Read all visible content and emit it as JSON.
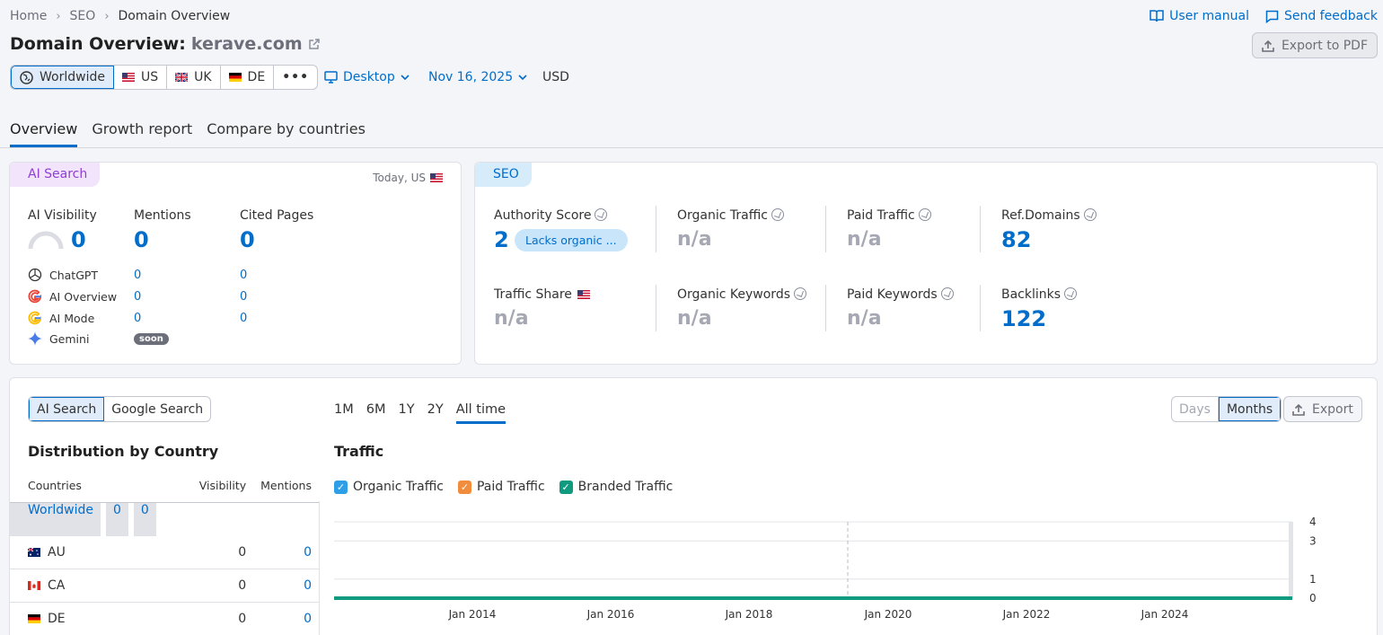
{
  "breadcrumb": [
    "Home",
    "SEO",
    "Domain Overview"
  ],
  "top_links": {
    "manual": "User manual",
    "feedback": "Send feedback"
  },
  "title": {
    "prefix": "Domain Overview:",
    "domain": "kerave.com"
  },
  "export_pdf": "Export to PDF",
  "databases": [
    {
      "label": "Worldwide",
      "icon": "globe-icon",
      "active": true
    },
    {
      "label": "US",
      "icon": "us-flag-icon"
    },
    {
      "label": "UK",
      "icon": "uk-flag-icon"
    },
    {
      "label": "DE",
      "icon": "de-flag-icon"
    }
  ],
  "device": "Desktop",
  "date": "Nov 16, 2025",
  "currency": "USD",
  "tabs": [
    "Overview",
    "Growth report",
    "Compare by countries"
  ],
  "ai_card": {
    "pill": "AI Search",
    "today": "Today, US",
    "metrics": [
      {
        "label": "AI Visibility",
        "value": "0"
      },
      {
        "label": "Mentions",
        "value": "0"
      },
      {
        "label": "Cited Pages",
        "value": "0"
      }
    ],
    "sources": [
      {
        "name": "ChatGPT",
        "icon": "chatgpt-icon",
        "mentions": "0",
        "cited": "0"
      },
      {
        "name": "AI Overview",
        "icon": "google-icon",
        "mentions": "0",
        "cited": "0"
      },
      {
        "name": "AI Mode",
        "icon": "google-icon",
        "mentions": "0",
        "cited": "0"
      },
      {
        "name": "Gemini",
        "icon": "gemini-icon",
        "badge": "soon"
      }
    ]
  },
  "seo_card": {
    "pill": "SEO",
    "authority": {
      "label": "Authority Score",
      "value": "2",
      "badge": "Lacks organic ..."
    },
    "organic_traffic": {
      "label": "Organic Traffic",
      "value": "n/a"
    },
    "paid_traffic": {
      "label": "Paid Traffic",
      "value": "n/a"
    },
    "ref_domains": {
      "label": "Ref.Domains",
      "value": "82"
    },
    "traffic_share": {
      "label": "Traffic Share",
      "value": "n/a"
    },
    "organic_keywords": {
      "label": "Organic Keywords",
      "value": "n/a"
    },
    "paid_keywords": {
      "label": "Paid Keywords",
      "value": "n/a"
    },
    "backlinks": {
      "label": "Backlinks",
      "value": "122"
    }
  },
  "bottom": {
    "search_toggle": [
      "AI Search",
      "Google Search"
    ],
    "periods": [
      "1M",
      "6M",
      "1Y",
      "2Y",
      "All time"
    ],
    "granularity": [
      "Days",
      "Months"
    ],
    "export": "Export",
    "dist_title": "Distribution by Country",
    "dist_headers": [
      "Countries",
      "Visibility",
      "Mentions"
    ],
    "dist_rows": [
      {
        "country": "Worldwide",
        "visibility": "0",
        "mentions": "0"
      },
      {
        "country": "AU",
        "visibility": "0",
        "mentions": "0",
        "icon": "au-flag-icon"
      },
      {
        "country": "CA",
        "visibility": "0",
        "mentions": "0",
        "icon": "ca-flag-icon"
      },
      {
        "country": "DE",
        "visibility": "0",
        "mentions": "0",
        "icon": "de-flag-icon"
      }
    ],
    "traffic_title": "Traffic",
    "legend": [
      {
        "label": "Organic Traffic",
        "color": "#2e9fe6"
      },
      {
        "label": "Paid Traffic",
        "color": "#f08c3c"
      },
      {
        "label": "Branded Traffic",
        "color": "#109b80"
      }
    ]
  },
  "chart_data": {
    "type": "line",
    "title": "Traffic",
    "x_ticks": [
      "Jan 2014",
      "Jan 2016",
      "Jan 2018",
      "Jan 2020",
      "Jan 2022",
      "Jan 2024"
    ],
    "y_ticks": [
      "4",
      "3",
      "1",
      "0"
    ],
    "ylim": [
      0,
      4
    ],
    "series": [
      {
        "name": "Branded Traffic",
        "values": [
          0,
          0,
          0,
          0,
          0,
          0
        ]
      }
    ]
  }
}
